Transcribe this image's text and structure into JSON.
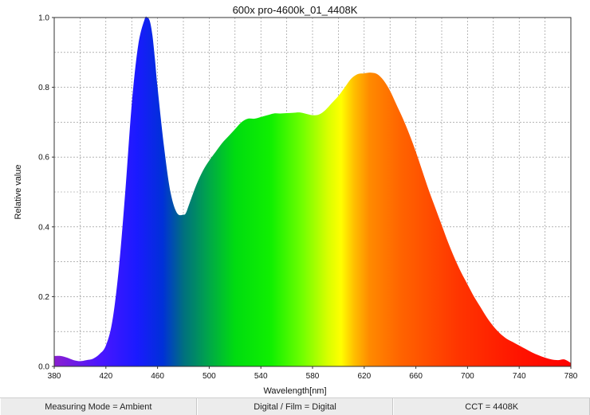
{
  "chart_data": {
    "type": "area",
    "title": "600x pro-4600k_01_4408K",
    "xlabel": "Wavelength[nm]",
    "ylabel": "Relative value",
    "xlim": [
      380,
      780
    ],
    "ylim": [
      0,
      1.0
    ],
    "x_ticks": [
      380,
      420,
      460,
      500,
      540,
      580,
      620,
      660,
      700,
      740,
      780
    ],
    "y_ticks": [
      "0.0",
      "0.2",
      "0.4",
      "0.6",
      "0.8",
      "1.0"
    ],
    "grid": true,
    "fill": "visible-spectrum gradient by wavelength",
    "series": [
      {
        "x": [
          380,
          385,
          390,
          395,
          400,
          405,
          410,
          415,
          420,
          425,
          430,
          435,
          440,
          445,
          450,
          452,
          454,
          456,
          458,
          460,
          465,
          470,
          475,
          480,
          482,
          485,
          490,
          495,
          500,
          505,
          510,
          515,
          520,
          525,
          530,
          535,
          540,
          545,
          550,
          555,
          560,
          565,
          570,
          575,
          580,
          585,
          590,
          595,
          600,
          605,
          610,
          615,
          620,
          625,
          630,
          635,
          640,
          645,
          650,
          655,
          660,
          665,
          670,
          675,
          680,
          685,
          690,
          695,
          700,
          705,
          710,
          715,
          720,
          725,
          730,
          735,
          740,
          745,
          750,
          755,
          760,
          765,
          770,
          775,
          780
        ],
        "y": [
          0.03,
          0.03,
          0.025,
          0.018,
          0.015,
          0.018,
          0.022,
          0.035,
          0.06,
          0.13,
          0.28,
          0.5,
          0.75,
          0.92,
          0.995,
          1.0,
          0.99,
          0.95,
          0.88,
          0.8,
          0.63,
          0.5,
          0.44,
          0.435,
          0.44,
          0.47,
          0.52,
          0.56,
          0.59,
          0.615,
          0.64,
          0.66,
          0.68,
          0.7,
          0.71,
          0.71,
          0.715,
          0.72,
          0.725,
          0.725,
          0.726,
          0.727,
          0.728,
          0.724,
          0.72,
          0.722,
          0.735,
          0.755,
          0.775,
          0.8,
          0.825,
          0.838,
          0.84,
          0.842,
          0.838,
          0.82,
          0.79,
          0.75,
          0.71,
          0.665,
          0.615,
          0.56,
          0.505,
          0.455,
          0.405,
          0.355,
          0.31,
          0.27,
          0.235,
          0.2,
          0.17,
          0.14,
          0.115,
          0.095,
          0.08,
          0.07,
          0.06,
          0.05,
          0.04,
          0.032,
          0.025,
          0.02,
          0.018,
          0.02,
          0.01
        ]
      }
    ]
  },
  "status_bar": {
    "measuring_mode": "Measuring Mode = Ambient",
    "film_mode": "Digital / Film = Digital",
    "cct": "CCT = 4408K"
  }
}
